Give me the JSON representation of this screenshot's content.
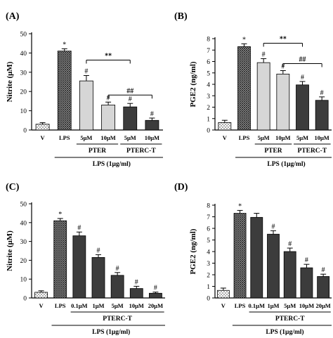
{
  "chart_data": [
    {
      "panel_label": "(A)",
      "type": "bar",
      "ylabel": "Nitrite (μM)",
      "ylim": [
        0,
        50
      ],
      "yticks": [
        0,
        10,
        20,
        30,
        40,
        50
      ],
      "categories": [
        "V",
        "LPS",
        "5μM",
        "10μM",
        "5μM",
        "10μM"
      ],
      "values": [
        3,
        41,
        25.5,
        13,
        12,
        5
      ],
      "errors": [
        0.8,
        1.2,
        2.8,
        1.5,
        1.8,
        1.2
      ],
      "fills": [
        "dots",
        "cross",
        "light",
        "light",
        "dark",
        "dark"
      ],
      "sig_marks": [
        "",
        "*",
        "#",
        "#",
        "#",
        "#"
      ],
      "groups": [
        {
          "label": "PTER",
          "from": 2,
          "to": 3
        },
        {
          "label": "PTERC-T",
          "from": 4,
          "to": 5
        }
      ],
      "treatment_label": "LPS (1μg/ml)",
      "comparisons": [
        {
          "label": "**",
          "from": 2,
          "to": 4
        },
        {
          "label": "##",
          "from": 3,
          "to": 5
        }
      ]
    },
    {
      "panel_label": "(B)",
      "type": "bar",
      "ylabel": "PGE2 (ng/ml)",
      "ylim": [
        0,
        8
      ],
      "yticks": [
        0,
        1,
        2,
        3,
        4,
        5,
        6,
        7,
        8
      ],
      "categories": [
        "V",
        "LPS",
        "5μM",
        "10μM",
        "5μM",
        "10μM"
      ],
      "values": [
        0.65,
        7.3,
        5.9,
        4.9,
        3.95,
        2.6
      ],
      "errors": [
        0.2,
        0.25,
        0.35,
        0.3,
        0.3,
        0.3
      ],
      "fills": [
        "dots",
        "cross",
        "light",
        "light",
        "dark",
        "dark"
      ],
      "sig_marks": [
        "",
        "*",
        "#",
        "#",
        "#",
        "#"
      ],
      "groups": [
        {
          "label": "PTER",
          "from": 2,
          "to": 3
        },
        {
          "label": "PTERC-T",
          "from": 4,
          "to": 5
        }
      ],
      "treatment_label": "LPS (1μg/ml)",
      "comparisons": [
        {
          "label": "**",
          "from": 2,
          "to": 4
        },
        {
          "label": "##",
          "from": 3,
          "to": 5
        }
      ]
    },
    {
      "panel_label": "(C)",
      "type": "bar",
      "ylabel": "Nitrite (μM)",
      "ylim": [
        0,
        50
      ],
      "yticks": [
        0,
        10,
        20,
        30,
        40,
        50
      ],
      "categories": [
        "V",
        "LPS",
        "0.1μM",
        "1μM",
        "5μM",
        "10μM",
        "20μM"
      ],
      "values": [
        3,
        41,
        33,
        21.5,
        12,
        5,
        2.5
      ],
      "errors": [
        0.8,
        1.2,
        2.0,
        1.5,
        1.5,
        1.2,
        0.6
      ],
      "fills": [
        "dots",
        "cross",
        "dark",
        "dark",
        "dark",
        "dark",
        "dark"
      ],
      "sig_marks": [
        "",
        "*",
        "#",
        "#",
        "#",
        "#",
        "#"
      ],
      "groups": [
        {
          "label": "PTERC-T",
          "from": 2,
          "to": 6
        }
      ],
      "treatment_label": "LPS (1μg/ml)",
      "comparisons": []
    },
    {
      "panel_label": "(D)",
      "type": "bar",
      "ylabel": "PGE2 (ng/ml)",
      "ylim": [
        0,
        8
      ],
      "yticks": [
        0,
        1,
        2,
        3,
        4,
        5,
        6,
        7,
        8
      ],
      "categories": [
        "V",
        "LPS",
        "0.1μM",
        "1μM",
        "5μM",
        "10μM",
        "20μM"
      ],
      "values": [
        0.65,
        7.3,
        6.95,
        5.5,
        4,
        2.6,
        1.85
      ],
      "errors": [
        0.2,
        0.25,
        0.35,
        0.3,
        0.3,
        0.3,
        0.2
      ],
      "fills": [
        "dots",
        "cross",
        "dark",
        "dark",
        "dark",
        "dark",
        "dark"
      ],
      "sig_marks": [
        "",
        "*",
        "",
        "#",
        "#",
        "#",
        "#"
      ],
      "groups": [
        {
          "label": "PTERC-T",
          "from": 2,
          "to": 6
        }
      ],
      "treatment_label": "LPS (1μg/ml)",
      "comparisons": []
    }
  ]
}
